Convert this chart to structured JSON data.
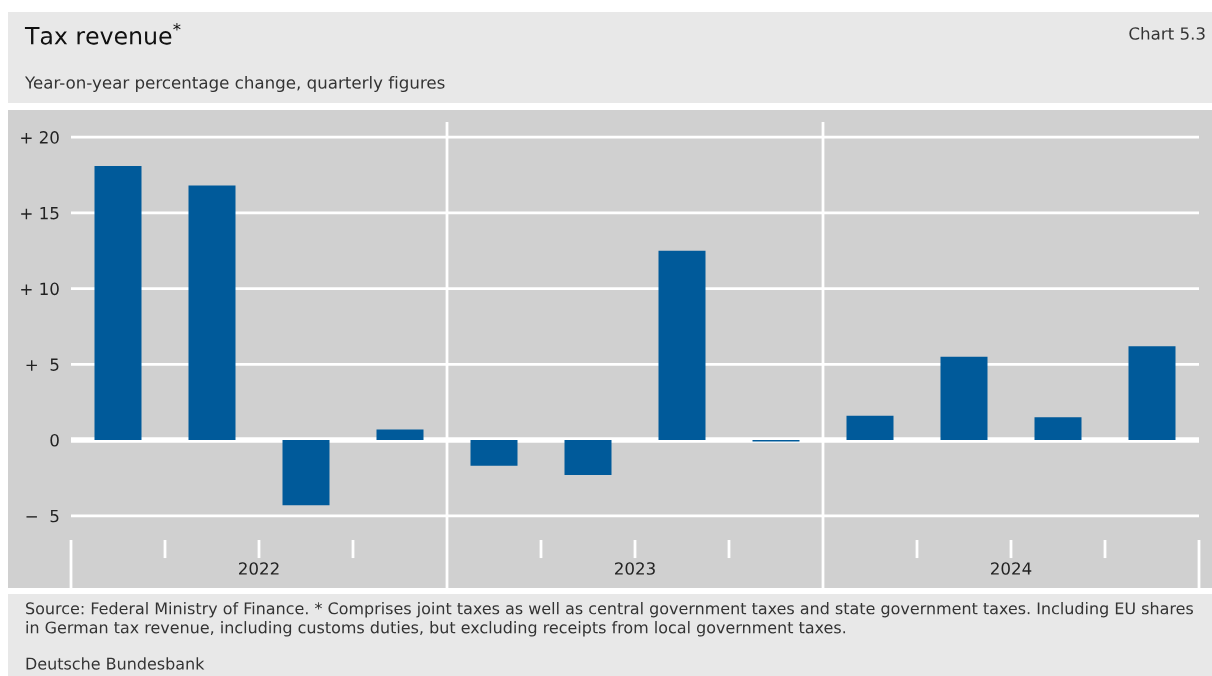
{
  "chart_data": {
    "type": "bar",
    "title": "Tax revenue$^{*}$",
    "subtitle": "Year-on-year percentage change, quarterly figures",
    "categories": [
      null,
      null,
      null,
      null,
      null,
      null,
      null,
      null,
      null,
      null,
      null,
      null
    ],
    "values": [
      18.1,
      16.8,
      -4.3,
      0.7,
      -1.7,
      -2.3,
      12.5,
      -0.1,
      1.6,
      5.5,
      1.5,
      6.2
    ],
    "color": "#005a9a",
    "ylim": [
      -6.6,
      21
    ],
    "yticks": [
      {
        "value": -5,
        "label": "−  5"
      },
      0,
      {
        "value": 5,
        "label": "+  5"
      },
      {
        "value": 10,
        "label": "+ 10"
      },
      {
        "value": 15,
        "label": "+ 15"
      },
      {
        "value": 20,
        "label": "+ 20"
      }
    ],
    "grid": "y",
    "annotations": [
      "2022",
      "2023",
      "2024",
      "Chart 5.3",
      "Source: Federal Ministry of Finance. * Comprises joint taxes as well as central government taxes and state government taxes. Including EU shares in German tax revenue, including customs duties, but excluding receipts from local government taxes.",
      "Deutsche Bundesbank"
    ]
  }
}
